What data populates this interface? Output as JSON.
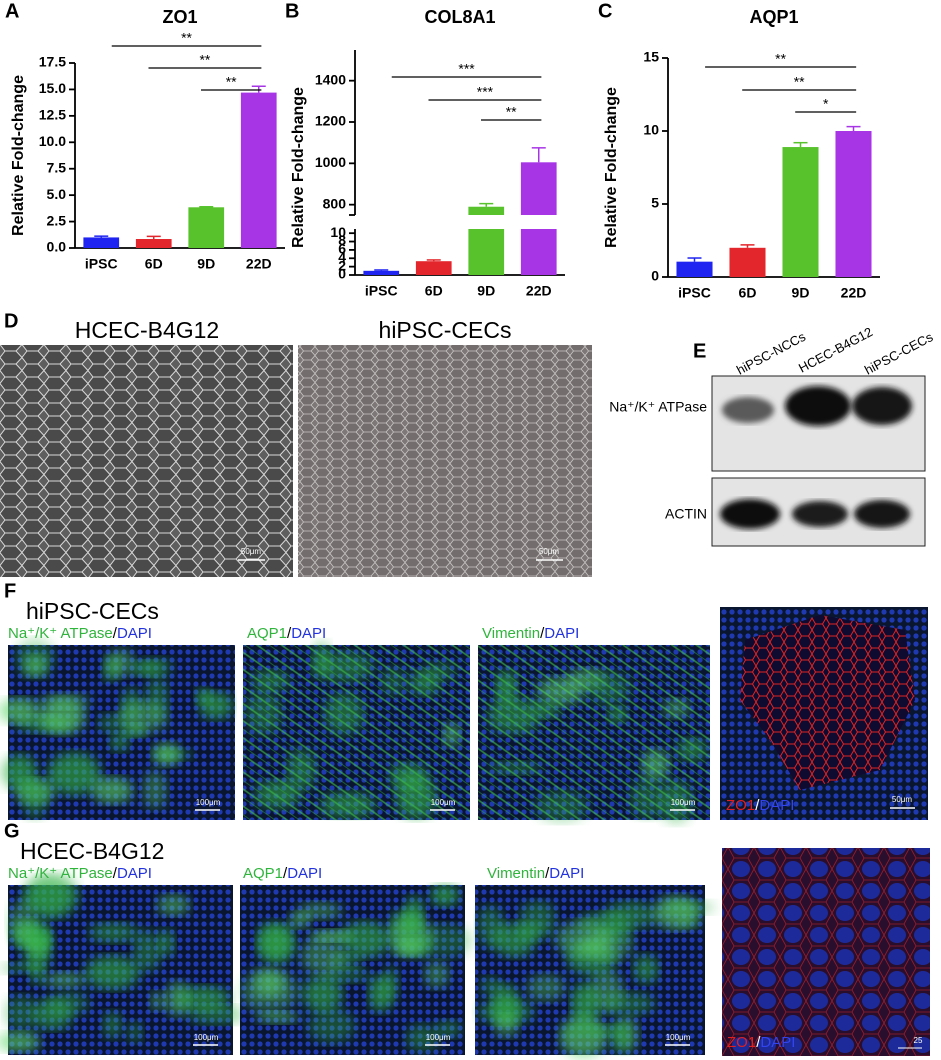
{
  "chart_data": [
    {
      "type": "bar",
      "panel": "A",
      "title": "ZO1",
      "y_label": "Relative Fold-change",
      "categories": [
        "iPSC",
        "6D",
        "9D",
        "22D"
      ],
      "values": [
        1.0,
        0.85,
        3.85,
        14.7
      ],
      "errors": [
        0.12,
        0.25,
        0.05,
        0.6
      ],
      "colors": [
        "#1f24f0",
        "#e3262b",
        "#57c22c",
        "#a735e6"
      ],
      "ylim": [
        0,
        17.5
      ],
      "yticks": [
        {
          "value": 0,
          "label": "0.0"
        },
        2.5,
        {
          "value": 5,
          "label": "5.0"
        },
        7.5,
        {
          "value": 10,
          "label": "10.0"
        },
        12.5,
        {
          "value": 15,
          "label": "15.0"
        },
        17.5
      ],
      "significance": [
        {
          "from": "iPSC",
          "to": "22D",
          "label": "**"
        },
        {
          "from": "6D",
          "to": "22D",
          "label": "**"
        },
        {
          "from": "9D",
          "to": "22D",
          "label": "**"
        }
      ]
    },
    {
      "type": "bar",
      "panel": "B",
      "title": "COL8A1",
      "y_label": "Relative Fold-change",
      "categories": [
        "iPSC",
        "6D",
        "9D",
        "22D"
      ],
      "values": [
        1.0,
        3.3,
        790,
        1005
      ],
      "errors": [
        0.2,
        0.3,
        15,
        70
      ],
      "colors": [
        "#1f24f0",
        "#e3262b",
        "#57c22c",
        "#a735e6"
      ],
      "ylim": [
        0,
        1500
      ],
      "y_break": [
        11,
        750
      ],
      "yticks": [
        0,
        2,
        4,
        6,
        8,
        10,
        800,
        1000,
        1200,
        1400
      ],
      "significance": [
        {
          "from": "iPSC",
          "to": "22D",
          "label": "***"
        },
        {
          "from": "6D",
          "to": "22D",
          "label": "***"
        },
        {
          "from": "9D",
          "to": "22D",
          "label": "**"
        }
      ]
    },
    {
      "type": "bar",
      "panel": "C",
      "title": "AQP1",
      "y_label": "Relative Fold-change",
      "categories": [
        "iPSC",
        "6D",
        "9D",
        "22D"
      ],
      "values": [
        1.05,
        2.0,
        8.9,
        10.0
      ],
      "errors": [
        0.25,
        0.2,
        0.3,
        0.3
      ],
      "colors": [
        "#1f24f0",
        "#e3262b",
        "#57c22c",
        "#a735e6"
      ],
      "ylim": [
        0,
        15
      ],
      "yticks": [
        0,
        5,
        10,
        15
      ],
      "significance": [
        {
          "from": "iPSC",
          "to": "22D",
          "label": "**"
        },
        {
          "from": "6D",
          "to": "22D",
          "label": "**"
        },
        {
          "from": "9D",
          "to": "22D",
          "label": "*"
        }
      ]
    }
  ],
  "panel_d": {
    "letter": "D",
    "images": [
      {
        "title": "HCEC-B4G12",
        "scale": "50μm"
      },
      {
        "title": "hiPSC-CECs",
        "scale": "50μm"
      }
    ]
  },
  "panel_e": {
    "letter": "E",
    "lanes": [
      "hiPSC-NCCs",
      "HCEC-B4G12",
      "hiPSC-CECs"
    ],
    "rows": [
      "Na⁺/K⁺ ATPase",
      "ACTIN"
    ]
  },
  "panel_f": {
    "letter": "F",
    "title": "hiPSC-CECs",
    "images": [
      {
        "marker": "Na⁺/K⁺ ATPase",
        "separator": "/",
        "counter": "DAPI",
        "scale": "100μm"
      },
      {
        "marker": "AQP1",
        "separator": "/",
        "counter": "DAPI",
        "scale": "100μm"
      },
      {
        "marker": "Vimentin",
        "separator": "/",
        "counter": "DAPI",
        "scale": "100μm"
      },
      {
        "marker": "ZO1",
        "separator": "/",
        "counter": "DAPI",
        "scale": "50μm"
      }
    ]
  },
  "panel_g": {
    "letter": "G",
    "title": "HCEC-B4G12",
    "images": [
      {
        "marker": "Na⁺/K⁺ ATPase",
        "separator": "/",
        "counter": "DAPI",
        "scale": "100μm"
      },
      {
        "marker": "AQP1",
        "separator": "/",
        "counter": "DAPI",
        "scale": "100μm"
      },
      {
        "marker": "Vimentin",
        "separator": "/",
        "counter": "DAPI",
        "scale": "100μm"
      },
      {
        "marker": "ZO1",
        "separator": "/",
        "counter": "DAPI",
        "scale": "25"
      }
    ]
  }
}
